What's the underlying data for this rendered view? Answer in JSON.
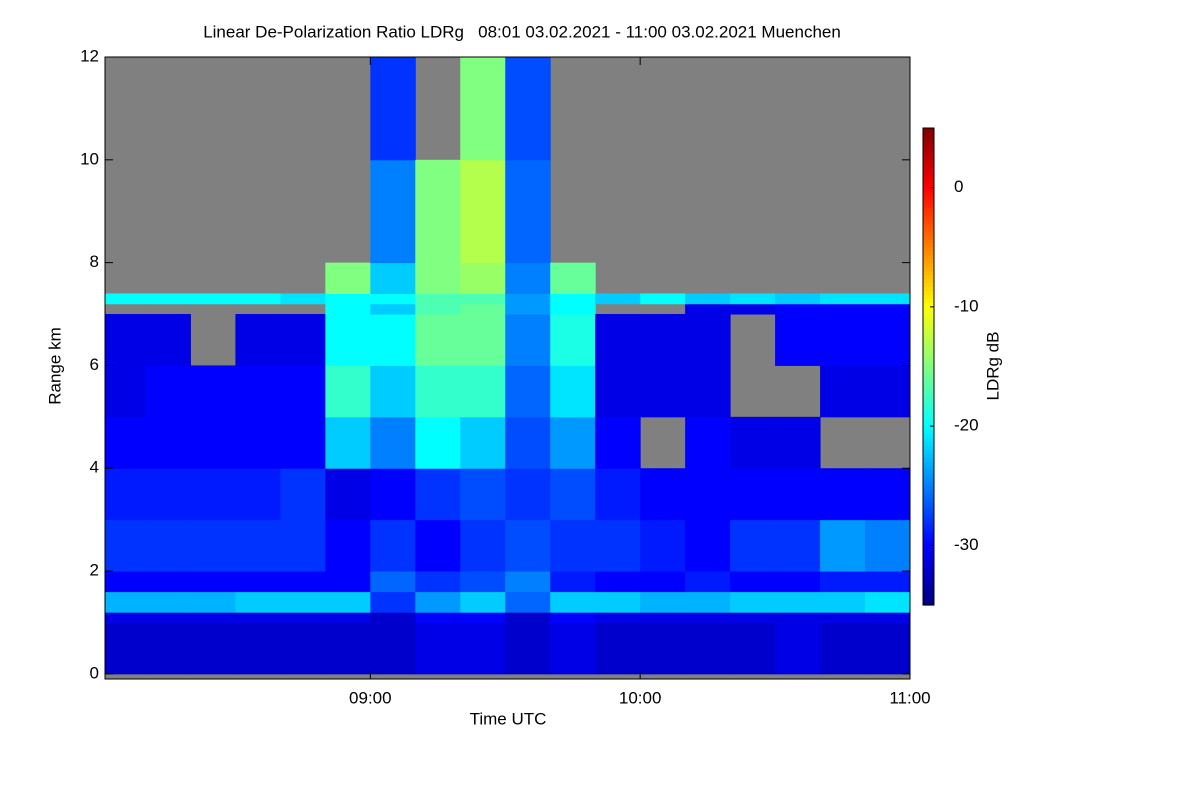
{
  "chart_data": {
    "type": "heatmap",
    "title": "Linear De-Polarization Ratio LDRg   08:01 03.02.2021 - 11:00 03.02.2021 Muenchen",
    "x_label": "Time UTC",
    "y_label": "Range km",
    "colorbar_label": "LDRg dB",
    "xlim": [
      8.0167,
      11.0
    ],
    "xticks": [
      {
        "value": 9,
        "label": "09:00"
      },
      {
        "value": 10,
        "label": "10:00"
      },
      {
        "value": 11,
        "label": "11:00"
      }
    ],
    "ylim": [
      -0.1,
      12
    ],
    "yticks": [
      0,
      2,
      4,
      6,
      8,
      10,
      12
    ],
    "zlim": [
      -35,
      5
    ],
    "zticks": [
      0,
      -10,
      -20,
      -30
    ],
    "colormap": "jet",
    "missing_color": "#808080",
    "x_bins": [
      8.0167,
      8.1667,
      8.3333,
      8.5,
      8.6667,
      8.8333,
      9.0,
      9.1667,
      9.3333,
      9.5,
      9.6667,
      9.8333,
      10.0,
      10.1667,
      10.3333,
      10.5,
      10.6667,
      10.8333,
      11.0
    ],
    "y_bins": [
      0,
      1,
      1.2,
      1.6,
      2,
      3,
      4,
      5,
      6,
      7,
      7.2,
      7.4,
      8,
      10,
      12
    ],
    "values": [
      [
        -32,
        -31,
        -23,
        -30,
        -28,
        -29,
        -30,
        -31,
        -31,
        null,
        -20,
        null,
        null,
        null
      ],
      [
        -32,
        -31,
        -23,
        -30,
        -28,
        -29,
        -30,
        -30,
        -31,
        null,
        -20,
        null,
        null,
        null
      ],
      [
        -32,
        -31,
        -23,
        -30,
        -28,
        -29,
        -30,
        -30,
        null,
        null,
        -20,
        null,
        null,
        null
      ],
      [
        -32,
        -31,
        -22,
        -30,
        -28,
        -29,
        -30,
        -30,
        -31,
        null,
        -20,
        null,
        null,
        null
      ],
      [
        -32,
        -31,
        -22,
        -30,
        -28,
        -28,
        -30,
        -30,
        -31,
        null,
        -21,
        null,
        null,
        null
      ],
      [
        -32,
        -31,
        -22,
        -30,
        -30,
        -31,
        -22,
        -18,
        -20,
        -20,
        -20,
        -15,
        null,
        null
      ],
      [
        -32,
        -32,
        -28,
        -26,
        -28,
        -30,
        -25,
        -22,
        -20,
        -22,
        -20,
        -22,
        -25,
        -28
      ],
      [
        -31,
        -30,
        -24,
        -28,
        -30,
        -28,
        -20,
        -18,
        -16,
        -17,
        -17,
        -15,
        -15,
        null
      ],
      [
        -31,
        -30,
        -22,
        -27,
        -28,
        -27,
        -22,
        -18,
        -16,
        -16,
        -17,
        -14,
        -13,
        -15
      ],
      [
        -32,
        -32,
        -26,
        -25,
        -27,
        -28,
        -27,
        -26,
        -25,
        -24,
        -24,
        -25,
        -26,
        -27
      ],
      [
        -31,
        -30,
        -22,
        -29,
        -28,
        -27,
        -24,
        -21,
        -19,
        -20,
        -20,
        -16,
        null,
        null
      ],
      [
        -32,
        -31,
        -22,
        -30,
        -28,
        -29,
        -30,
        -31,
        -31,
        null,
        -22,
        null,
        null,
        null
      ],
      [
        -32,
        -31,
        -23,
        -30,
        -29,
        -30,
        null,
        -31,
        -31,
        null,
        -20,
        null,
        null,
        null
      ],
      [
        -32,
        -31,
        -23,
        -29,
        -30,
        -30,
        -30,
        -31,
        -31,
        -31,
        -22,
        null,
        null,
        null
      ],
      [
        -32,
        -31,
        -22,
        -30,
        -28,
        -30,
        -31,
        null,
        null,
        -31,
        -21,
        null,
        null,
        null
      ],
      [
        -31,
        -31,
        -22,
        -30,
        -28,
        -30,
        -31,
        null,
        -30,
        -30,
        -22,
        null,
        null,
        null
      ],
      [
        -32,
        -31,
        -22,
        -29,
        -24,
        -30,
        null,
        -31,
        -30,
        -30,
        -21,
        null,
        null,
        null
      ],
      [
        -32,
        -31,
        -21,
        -29,
        -25,
        -30,
        null,
        -31,
        -30,
        -30,
        -21,
        null,
        null,
        null
      ]
    ]
  }
}
